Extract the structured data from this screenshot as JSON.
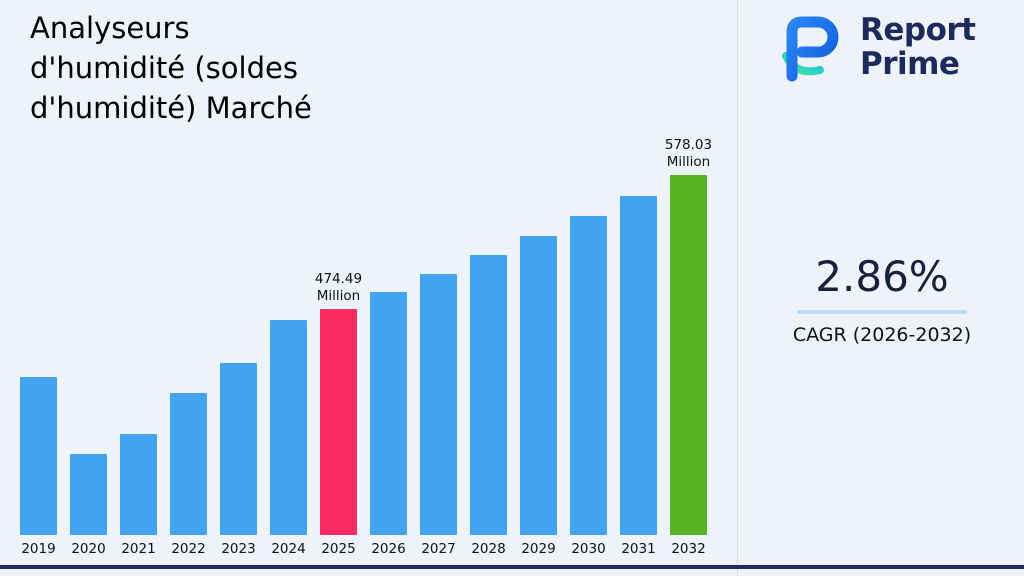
{
  "page": {
    "background": "#edf2fb",
    "bottom_bar_color": "#1c2a66"
  },
  "header": {
    "title": "Analyseurs\nd'humidité (soldes\nd'humidité) Marché"
  },
  "logo": {
    "name": "Report Prime",
    "line1": "Report",
    "line2": "Prime",
    "text_color": "#1e2a5c"
  },
  "stats": {
    "cagr_value": "2.86%",
    "cagr_label": "CAGR (2026-2032)",
    "underline_color": "#bed9f6"
  },
  "chart_data": {
    "type": "bar",
    "title": "Analyseurs d'humidité (soldes d'humidité) Marché",
    "unit": "Million",
    "categories": [
      "2019",
      "2020",
      "2021",
      "2022",
      "2023",
      "2024",
      "2025",
      "2026",
      "2027",
      "2028",
      "2029",
      "2030",
      "2031",
      "2032"
    ],
    "values": [
      422,
      363,
      378,
      410,
      433,
      466,
      474.49,
      488.06,
      502.02,
      516.38,
      531.15,
      546.34,
      561.96,
      578.03
    ],
    "labeled_values": {
      "2025": "474.49\nMillion",
      "2032": "578.03\nMillion"
    },
    "default_color": "#42a4f0",
    "color_overrides": {
      "2025": "#fa2a63",
      "2032": "#57b322"
    },
    "ylim": [
      300,
      600
    ],
    "grid": false,
    "legend": false
  }
}
